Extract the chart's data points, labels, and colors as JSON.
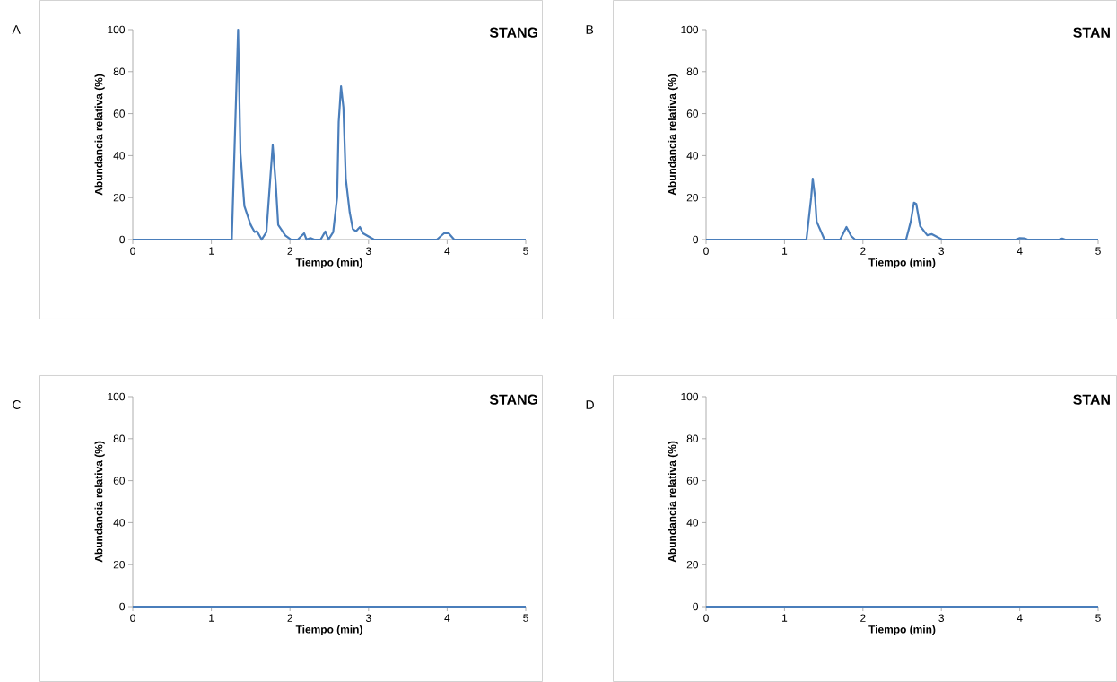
{
  "chart_data": [
    {
      "type": "line",
      "title": "STANG",
      "annotations": [
        "A"
      ],
      "xlabel": "Tiempo (min)",
      "ylabel": "Abundancia relativa (%)",
      "color": "#4a7ebb",
      "xlim": [
        0,
        5
      ],
      "ylim": [
        0,
        100
      ],
      "xticks": [
        0,
        1,
        2,
        3,
        4,
        5
      ],
      "yticks": [
        0,
        20,
        40,
        60,
        80,
        100
      ],
      "x": [
        0,
        1.26,
        1.34,
        1.37,
        1.42,
        1.5,
        1.55,
        1.58,
        1.64,
        1.7,
        1.78,
        1.82,
        1.85,
        1.94,
        2.01,
        2.1,
        2.18,
        2.21,
        2.26,
        2.31,
        2.39,
        2.45,
        2.49,
        2.55,
        2.6,
        2.62,
        2.65,
        2.68,
        2.71,
        2.76,
        2.8,
        2.84,
        2.89,
        2.93,
        2.99,
        3.07,
        3.87,
        3.96,
        4.02,
        4.09,
        5
      ],
      "values": [
        0,
        0,
        100,
        41,
        16,
        7,
        3.6,
        4,
        0,
        3.6,
        45,
        26,
        7,
        2,
        0,
        0,
        3,
        0,
        0.7,
        0,
        0,
        3.9,
        0,
        3.6,
        20,
        56,
        73,
        63,
        29,
        13,
        5,
        4,
        6,
        3,
        1.7,
        0,
        0,
        3,
        3,
        0,
        0
      ]
    },
    {
      "type": "line",
      "title": "STAN",
      "annotations": [
        "B"
      ],
      "xlabel": "Tiempo (min)",
      "ylabel": "Abundancia relativa (%)",
      "color": "#4a7ebb",
      "xlim": [
        0,
        5
      ],
      "ylim": [
        0,
        100
      ],
      "xticks": [
        0,
        1,
        2,
        3,
        4,
        5
      ],
      "yticks": [
        0,
        20,
        40,
        60,
        80,
        100
      ],
      "x": [
        0,
        1.28,
        1.34,
        1.36,
        1.39,
        1.41,
        1.46,
        1.51,
        1.71,
        1.79,
        1.85,
        1.9,
        2.55,
        2.61,
        2.65,
        2.68,
        2.73,
        2.82,
        2.88,
        2.94,
        3.01,
        3.95,
        4.0,
        4.06,
        4.1,
        4.5,
        4.54,
        4.58,
        5
      ],
      "values": [
        0,
        0,
        20,
        29,
        20,
        8.6,
        4.3,
        0,
        0,
        6,
        1.7,
        0,
        0,
        8.6,
        17.6,
        17,
        6.4,
        2.1,
        2.6,
        1.4,
        0,
        0,
        0.7,
        0.6,
        0,
        0,
        0.5,
        0,
        0
      ]
    },
    {
      "type": "line",
      "title": "STANG",
      "annotations": [
        "C"
      ],
      "xlabel": "Tiempo (min)",
      "ylabel": "Abundancia relativa (%)",
      "color": "#4a7ebb",
      "xlim": [
        0,
        5
      ],
      "ylim": [
        0,
        100
      ],
      "xticks": [
        0,
        1,
        2,
        3,
        4,
        5
      ],
      "yticks": [
        0,
        20,
        40,
        60,
        80,
        100
      ],
      "x": [
        0,
        5
      ],
      "values": [
        0,
        0
      ]
    },
    {
      "type": "line",
      "title": "STAN",
      "annotations": [
        "D"
      ],
      "xlabel": "Tiempo (min)",
      "ylabel": "Abundancia relativa (%)",
      "color": "#4a7ebb",
      "xlim": [
        0,
        5
      ],
      "ylim": [
        0,
        100
      ],
      "xticks": [
        0,
        1,
        2,
        3,
        4,
        5
      ],
      "yticks": [
        0,
        20,
        40,
        60,
        80,
        100
      ],
      "x": [
        0,
        5
      ],
      "values": [
        0,
        0
      ]
    }
  ]
}
